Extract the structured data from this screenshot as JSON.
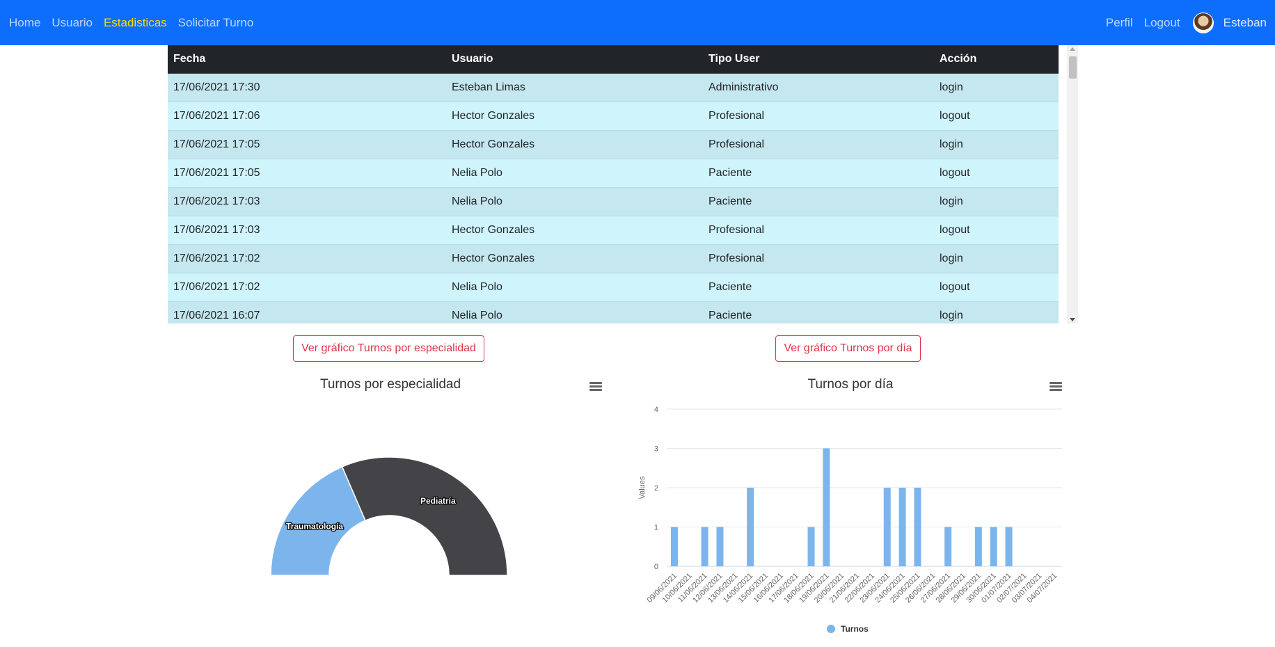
{
  "nav": {
    "left": [
      "Home",
      "Usuario",
      "Estadisticas",
      "Solicitar Turno"
    ],
    "active": "Estadisticas",
    "right": [
      "Perfil",
      "Logout"
    ],
    "user_name": "Esteban",
    "colors": {
      "background": "#0d6efd",
      "active_highlight": "#1f8a00",
      "active_text": "#ffdd00"
    }
  },
  "log_table": {
    "headers": [
      "Fecha",
      "Usuario",
      "Tipo User",
      "Acción"
    ],
    "rows": [
      [
        "17/06/2021 17:30",
        "Esteban Limas",
        "Administrativo",
        "login"
      ],
      [
        "17/06/2021 17:06",
        "Hector Gonzales",
        "Profesional",
        "logout"
      ],
      [
        "17/06/2021 17:05",
        "Hector Gonzales",
        "Profesional",
        "login"
      ],
      [
        "17/06/2021 17:05",
        "Nelia Polo",
        "Paciente",
        "logout"
      ],
      [
        "17/06/2021 17:03",
        "Nelia Polo",
        "Paciente",
        "login"
      ],
      [
        "17/06/2021 17:03",
        "Hector Gonzales",
        "Profesional",
        "logout"
      ],
      [
        "17/06/2021 17:02",
        "Hector Gonzales",
        "Profesional",
        "login"
      ],
      [
        "17/06/2021 17:02",
        "Nelia Polo",
        "Paciente",
        "logout"
      ],
      [
        "17/06/2021 16:07",
        "Nelia Polo",
        "Paciente",
        "login"
      ]
    ]
  },
  "buttons": {
    "especialidad": "Ver gráfico Turnos por especialidad",
    "dia": "Ver gráfico Turnos por día"
  },
  "chart_data": [
    {
      "type": "pie",
      "variant": "semi-donut",
      "title": "Turnos por especialidad",
      "labels": [
        "Traumatología",
        "Pediatría"
      ],
      "values": [
        1,
        1.7
      ],
      "colors": [
        "#7cb5ec",
        "#434348"
      ]
    },
    {
      "type": "bar",
      "title": "Turnos por día",
      "ylabel": "Values",
      "ylim": [
        0,
        4
      ],
      "yticks": [
        0,
        1,
        2,
        3,
        4
      ],
      "categories": [
        "09/06/2021",
        "10/06/2021",
        "11/06/2021",
        "12/06/2021",
        "13/06/2021",
        "14/06/2021",
        "15/06/2021",
        "16/06/2021",
        "17/06/2021",
        "18/06/2021",
        "19/06/2021",
        "20/06/2021",
        "21/06/2021",
        "22/06/2021",
        "23/06/2021",
        "24/06/2021",
        "25/06/2021",
        "26/06/2021",
        "27/06/2021",
        "28/06/2021",
        "29/06/2021",
        "30/06/2021",
        "01/07/2021",
        "02/07/2021",
        "03/07/2021",
        "04/07/2021"
      ],
      "series": [
        {
          "name": "Turnos",
          "color": "#7cb5ec",
          "values": [
            1,
            0,
            1,
            1,
            0,
            2,
            0,
            0,
            0,
            1,
            3,
            0,
            0,
            0,
            2,
            2,
            2,
            0,
            1,
            0,
            1,
            1,
            1,
            0,
            0,
            0
          ]
        }
      ],
      "legend": "bottom-center"
    }
  ]
}
